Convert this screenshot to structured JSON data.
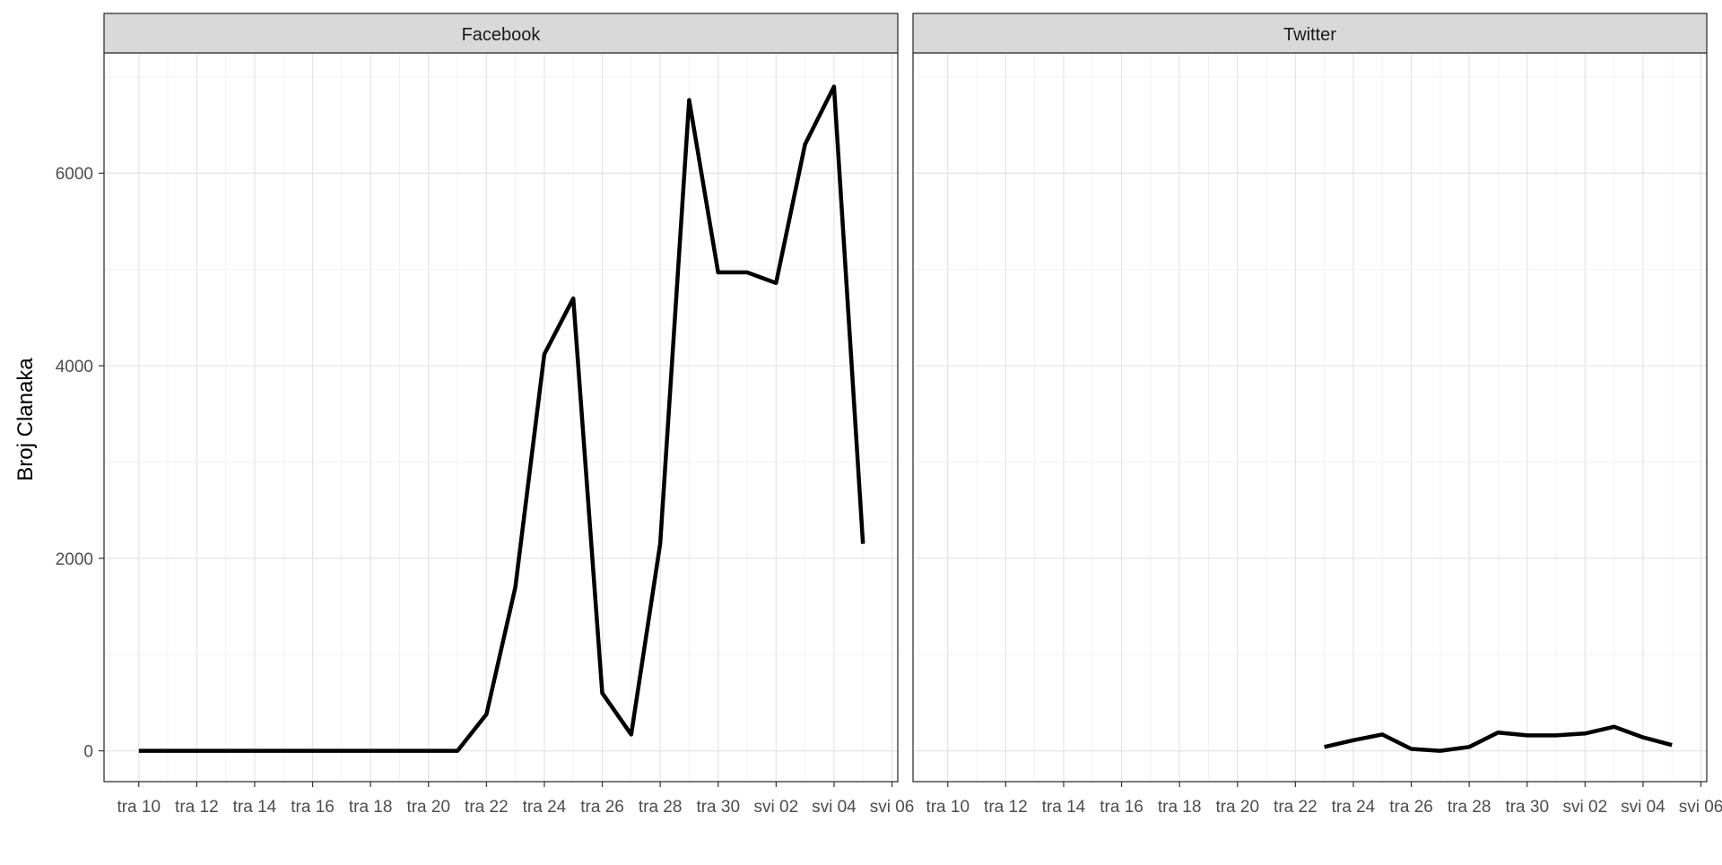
{
  "chart_data": {
    "type": "line",
    "ylabel": "Broj Clanaka",
    "xlabel": "",
    "ylim": [
      -320,
      7250
    ],
    "yticks": [
      0,
      2000,
      4000,
      6000
    ],
    "yticklabels": [
      "0",
      "2000",
      "4000",
      "6000"
    ],
    "xlim": [
      -1.2,
      26.2
    ],
    "xticks": [
      0,
      2,
      4,
      6,
      8,
      10,
      12,
      14,
      16,
      18,
      20,
      22,
      24,
      26
    ],
    "xticklabels": [
      "tra 10",
      "tra 12",
      "tra 14",
      "tra 16",
      "tra 18",
      "tra 20",
      "tra 22",
      "tra 24",
      "tra 26",
      "tra 28",
      "tra 30",
      "svi 02",
      "svi 04",
      "svi 06"
    ],
    "x_dates": [
      "tra 10",
      "tra 11",
      "tra 12",
      "tra 13",
      "tra 14",
      "tra 15",
      "tra 16",
      "tra 17",
      "tra 18",
      "tra 19",
      "tra 20",
      "tra 21",
      "tra 22",
      "tra 23",
      "tra 24",
      "tra 25",
      "tra 26",
      "tra 27",
      "tra 28",
      "tra 29",
      "tra 30",
      "svi 01",
      "svi 02",
      "svi 03",
      "svi 04",
      "svi 05"
    ],
    "grid": true,
    "line_color": "#000000",
    "panels": [
      {
        "strip": "Facebook",
        "values": [
          0,
          0,
          0,
          0,
          0,
          0,
          0,
          0,
          0,
          0,
          0,
          0,
          380,
          1700,
          4120,
          4700,
          600,
          170,
          2150,
          6760,
          4970,
          4970,
          4860,
          6300,
          6900,
          2150
        ]
      },
      {
        "strip": "Twitter",
        "values": [
          null,
          null,
          null,
          null,
          null,
          null,
          null,
          null,
          null,
          null,
          null,
          null,
          null,
          40,
          110,
          170,
          20,
          0,
          40,
          190,
          160,
          160,
          180,
          250,
          140,
          60
        ]
      }
    ]
  }
}
